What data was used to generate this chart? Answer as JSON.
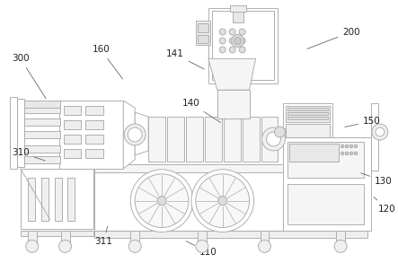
{
  "bg_color": "#ffffff",
  "lc": "#aaaaaa",
  "lc2": "#999999",
  "fc_white": "#ffffff",
  "fc_light": "#f2f2f2",
  "label_color": "#222222",
  "label_fontsize": 7.5,
  "arrow_color": "#666666",
  "labels": [
    [
      "110",
      232,
      282,
      205,
      268
    ],
    [
      "120",
      432,
      233,
      415,
      218
    ],
    [
      "130",
      428,
      202,
      400,
      192
    ],
    [
      "140",
      213,
      115,
      248,
      138
    ],
    [
      "141",
      195,
      60,
      230,
      78
    ],
    [
      "150",
      415,
      135,
      382,
      142
    ],
    [
      "160",
      112,
      55,
      138,
      90
    ],
    [
      "200",
      392,
      35,
      340,
      55
    ],
    [
      "300",
      22,
      65,
      52,
      112
    ],
    [
      "310",
      22,
      170,
      52,
      180
    ],
    [
      "311",
      115,
      270,
      120,
      250
    ]
  ]
}
